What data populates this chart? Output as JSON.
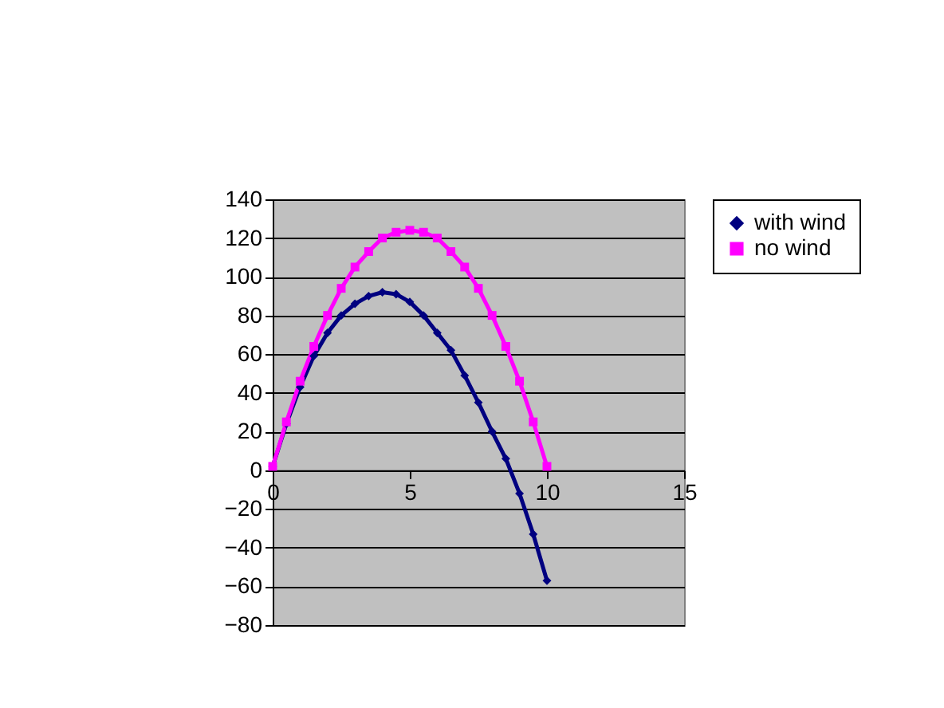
{
  "chart_data": {
    "type": "line",
    "x": [
      0,
      0.5,
      1,
      1.5,
      2,
      2.5,
      3,
      3.5,
      4,
      4.5,
      5,
      5.5,
      6,
      6.5,
      7,
      7.5,
      8,
      8.5,
      9,
      9.5,
      10
    ],
    "series": [
      {
        "name": "with wind",
        "color": "#000080",
        "marker": "diamond",
        "values": [
          2,
          24,
          43,
          59,
          71,
          80,
          86,
          90,
          92,
          91,
          87,
          80,
          71,
          62,
          49,
          35,
          20,
          6,
          -12,
          -33,
          -57
        ]
      },
      {
        "name": "no wind",
        "color": "#ff00ff",
        "marker": "square",
        "values": [
          2,
          25,
          46,
          64,
          80,
          94,
          105,
          113,
          120,
          123,
          124,
          123,
          120,
          113,
          105,
          94,
          80,
          64,
          46,
          25,
          2
        ]
      }
    ],
    "xlim": [
      0,
      15
    ],
    "xticks": [
      0,
      5,
      10,
      15
    ],
    "ylim": [
      -80,
      140
    ],
    "yticks": [
      -80,
      -60,
      -40,
      -20,
      0,
      20,
      40,
      60,
      80,
      100,
      120,
      140
    ],
    "grid": "y",
    "legend": "right",
    "line_style": "solid"
  }
}
